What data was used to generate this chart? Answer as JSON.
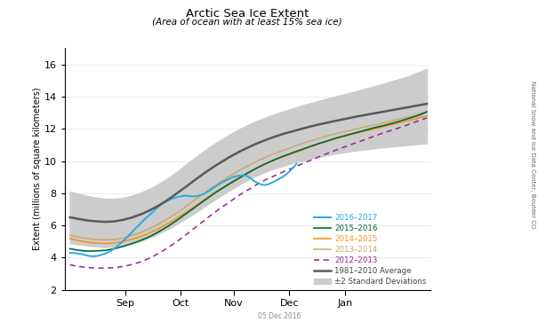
{
  "title": "Arctic Sea Ice Extent",
  "subtitle": "(Area of ocean with at least 15% sea ice)",
  "ylabel": "Extent (millions of square kilometers)",
  "ylim": [
    2,
    17
  ],
  "yticks": [
    2,
    4,
    6,
    8,
    10,
    12,
    14,
    16
  ],
  "watermark": "05 Dec 2016",
  "side_label": "National Snow and Ice Data Center, Boulder CO",
  "colors": {
    "2016": "#29ABE2",
    "2015": "#006837",
    "2014": "#F7941D",
    "2013": "#C8A96E",
    "2012": "#92278F",
    "avg": "#58595B",
    "std_fill": "#CCCCCC"
  },
  "avg_data": {
    "doy": [
      213,
      218,
      223,
      228,
      233,
      238,
      243,
      248,
      253,
      258,
      263,
      268,
      273,
      278,
      283,
      288,
      293,
      298,
      303,
      308,
      313,
      318,
      323,
      328,
      333,
      338,
      343,
      348,
      353,
      358,
      363,
      368,
      373,
      378,
      383,
      388,
      393,
      398,
      403,
      408,
      413
    ],
    "y": [
      6.5,
      6.4,
      6.3,
      6.25,
      6.22,
      6.25,
      6.35,
      6.5,
      6.7,
      6.95,
      7.25,
      7.6,
      8.0,
      8.4,
      8.82,
      9.22,
      9.6,
      9.95,
      10.28,
      10.58,
      10.85,
      11.1,
      11.32,
      11.52,
      11.7,
      11.85,
      12.0,
      12.15,
      12.28,
      12.4,
      12.52,
      12.63,
      12.75,
      12.85,
      12.95,
      13.05,
      13.15,
      13.25,
      13.35,
      13.45,
      13.55
    ],
    "std_upper": [
      8.1,
      7.95,
      7.82,
      7.72,
      7.65,
      7.65,
      7.72,
      7.85,
      8.05,
      8.3,
      8.6,
      8.95,
      9.35,
      9.78,
      10.2,
      10.62,
      11.0,
      11.35,
      11.68,
      11.98,
      12.25,
      12.5,
      12.72,
      12.92,
      13.1,
      13.28,
      13.45,
      13.6,
      13.75,
      13.9,
      14.05,
      14.18,
      14.32,
      14.48,
      14.62,
      14.78,
      14.95,
      15.1,
      15.28,
      15.5,
      15.72
    ],
    "std_lower": [
      4.9,
      4.82,
      4.75,
      4.7,
      4.65,
      4.68,
      4.75,
      4.88,
      5.05,
      5.25,
      5.5,
      5.78,
      6.1,
      6.42,
      6.78,
      7.15,
      7.52,
      7.88,
      8.22,
      8.55,
      8.85,
      9.12,
      9.35,
      9.55,
      9.72,
      9.88,
      10.02,
      10.15,
      10.27,
      10.38,
      10.48,
      10.57,
      10.65,
      10.72,
      10.78,
      10.85,
      10.9,
      10.95,
      11.0,
      11.05,
      11.1
    ]
  },
  "line_2016": {
    "doy": [
      213,
      218,
      220,
      222,
      224,
      226,
      228,
      230,
      232,
      234,
      236,
      238,
      240,
      242,
      244,
      246,
      248,
      250,
      252,
      254,
      256,
      258,
      260,
      262,
      264,
      266,
      268,
      270,
      272,
      274,
      276,
      278,
      280,
      282,
      284,
      286,
      288,
      290,
      292,
      294,
      296,
      298,
      300,
      302,
      304,
      306,
      308,
      310,
      312,
      314,
      316,
      318,
      320,
      322,
      324,
      326,
      328,
      330,
      332,
      334,
      336,
      338,
      340
    ],
    "y": [
      4.3,
      4.25,
      4.2,
      4.15,
      4.1,
      4.08,
      4.1,
      4.15,
      4.22,
      4.3,
      4.42,
      4.58,
      4.75,
      4.95,
      5.15,
      5.38,
      5.6,
      5.85,
      6.05,
      6.28,
      6.5,
      6.68,
      6.88,
      7.1,
      7.28,
      7.42,
      7.55,
      7.65,
      7.72,
      7.78,
      7.82,
      7.85,
      7.82,
      7.8,
      7.82,
      7.88,
      7.95,
      8.08,
      8.22,
      8.38,
      8.52,
      8.65,
      8.78,
      8.88,
      9.0,
      9.05,
      9.1,
      9.12,
      9.08,
      8.95,
      8.78,
      8.65,
      8.55,
      8.5,
      8.55,
      8.65,
      8.75,
      8.88,
      9.0,
      9.15,
      9.35,
      9.58,
      9.82
    ]
  },
  "line_2015": {
    "doy": [
      213,
      218,
      223,
      228,
      233,
      238,
      243,
      248,
      253,
      258,
      263,
      268,
      273,
      278,
      283,
      288,
      293,
      298,
      303,
      308,
      313,
      318,
      323,
      328,
      333,
      338,
      343,
      348,
      353,
      358,
      363,
      368,
      373,
      378,
      383,
      388,
      393,
      398,
      403,
      408,
      413
    ],
    "y": [
      4.55,
      4.45,
      4.4,
      4.42,
      4.45,
      4.55,
      4.7,
      4.88,
      5.08,
      5.32,
      5.62,
      5.95,
      6.32,
      6.72,
      7.12,
      7.52,
      7.92,
      8.28,
      8.62,
      8.95,
      9.28,
      9.58,
      9.85,
      10.1,
      10.32,
      10.52,
      10.72,
      10.92,
      11.1,
      11.28,
      11.45,
      11.6,
      11.75,
      11.9,
      12.05,
      12.18,
      12.32,
      12.48,
      12.65,
      12.82,
      13.05
    ]
  },
  "line_2014": {
    "doy": [
      213,
      218,
      223,
      228,
      233,
      238,
      243,
      248,
      253,
      258,
      263,
      268,
      273,
      278,
      283,
      288,
      293,
      298,
      303,
      308,
      313,
      318,
      323,
      328,
      333,
      338,
      343,
      348,
      353,
      358,
      363,
      368,
      373,
      378,
      383,
      388,
      393,
      398,
      403,
      408,
      413
    ],
    "y": [
      5.18,
      5.05,
      4.95,
      4.9,
      4.88,
      4.9,
      5.0,
      5.15,
      5.32,
      5.55,
      5.82,
      6.12,
      6.45,
      6.82,
      7.18,
      7.58,
      7.95,
      8.32,
      8.65,
      8.98,
      9.28,
      9.58,
      9.85,
      10.08,
      10.28,
      10.48,
      10.68,
      10.88,
      11.08,
      11.25,
      11.42,
      11.58,
      11.72,
      11.85,
      11.98,
      12.12,
      12.25,
      12.38,
      12.52,
      12.65,
      12.82
    ]
  },
  "line_2013": {
    "doy": [
      213,
      218,
      223,
      228,
      233,
      238,
      243,
      248,
      253,
      258,
      263,
      268,
      273,
      278,
      283,
      288,
      293,
      298,
      303,
      308,
      313,
      318,
      323,
      328,
      333,
      338,
      343,
      348,
      353,
      358,
      363,
      368,
      373,
      378,
      383,
      388,
      393,
      398,
      403,
      408,
      413
    ],
    "y": [
      5.38,
      5.28,
      5.18,
      5.12,
      5.1,
      5.12,
      5.22,
      5.38,
      5.58,
      5.82,
      6.1,
      6.42,
      6.78,
      7.18,
      7.58,
      7.98,
      8.38,
      8.75,
      9.1,
      9.42,
      9.72,
      10.0,
      10.25,
      10.48,
      10.68,
      10.88,
      11.08,
      11.25,
      11.42,
      11.58,
      11.72,
      11.85,
      11.98,
      12.1,
      12.22,
      12.35,
      12.48,
      12.62,
      12.75,
      12.9,
      13.08
    ]
  },
  "line_2012": {
    "doy": [
      213,
      218,
      223,
      228,
      233,
      238,
      243,
      248,
      253,
      258,
      263,
      268,
      273,
      278,
      283,
      288,
      293,
      298,
      303,
      308,
      313,
      318,
      323,
      328,
      333,
      338,
      343,
      348,
      353,
      358,
      363,
      368,
      373,
      378,
      383,
      388,
      393,
      398,
      403,
      408,
      413
    ],
    "y": [
      3.55,
      3.45,
      3.38,
      3.35,
      3.35,
      3.38,
      3.45,
      3.58,
      3.75,
      3.98,
      4.28,
      4.62,
      5.0,
      5.42,
      5.85,
      6.28,
      6.72,
      7.12,
      7.5,
      7.88,
      8.22,
      8.55,
      8.85,
      9.1,
      9.35,
      9.58,
      9.82,
      10.05,
      10.28,
      10.5,
      10.72,
      10.92,
      11.12,
      11.32,
      11.52,
      11.72,
      11.9,
      12.08,
      12.28,
      12.48,
      12.68
    ]
  },
  "month_ticks_doy": [
    244,
    275,
    305,
    336,
    367
  ],
  "month_labels": [
    "Sep",
    "Oct",
    "Nov",
    "Dec",
    "Jan"
  ],
  "xlim_doy": [
    210,
    415
  ]
}
